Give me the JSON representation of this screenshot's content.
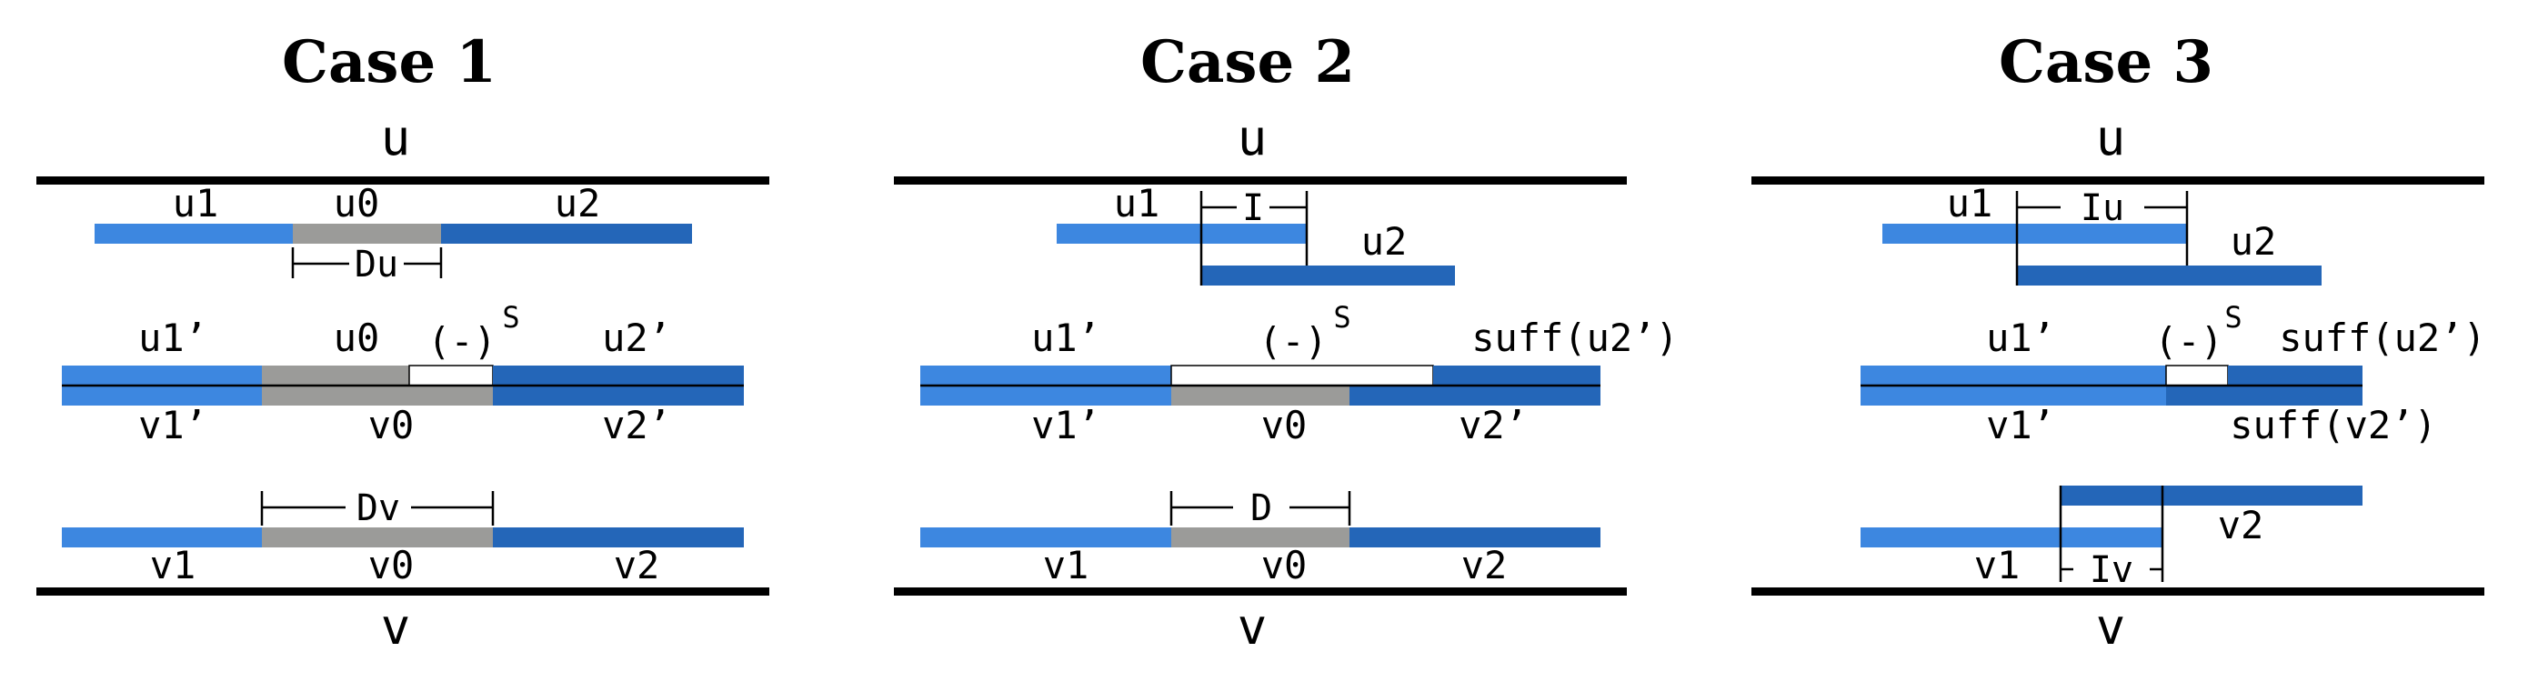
{
  "colors": {
    "light_blue": "#3d87e0",
    "dark_blue": "#2466b8",
    "gray": "#9b9b99",
    "white_segment": "#ffffff",
    "line": "#000000"
  },
  "case1": {
    "title": "Case 1",
    "top_string": "u",
    "bottom_string": "v",
    "u_row": {
      "left": "u1",
      "middle": "u0",
      "right": "u2",
      "dim": "Du"
    },
    "mid_row": {
      "top_left": "u1’",
      "top_middle": "u0",
      "gap": "(-)",
      "gap_sup": "S",
      "top_right": "u2’",
      "bottom_left": "v1’",
      "bottom_middle": "v0",
      "bottom_right": "v2’"
    },
    "v_row": {
      "dim": "Dv",
      "left": "v1",
      "middle": "v0",
      "right": "v2"
    }
  },
  "case2": {
    "title": "Case 2",
    "top_string": "u",
    "bottom_string": "v",
    "u_row": {
      "left": "u1",
      "interval": "I",
      "right": "u2"
    },
    "mid_row": {
      "top_left": "u1’",
      "gap": "(-)",
      "gap_sup": "S",
      "top_right": "suff(u2’)",
      "bottom_left": "v1’",
      "bottom_middle": "v0",
      "bottom_right": "v2’"
    },
    "v_row": {
      "dim": "D",
      "left": "v1",
      "middle": "v0",
      "right": "v2"
    }
  },
  "case3": {
    "title": "Case 3",
    "top_string": "u",
    "bottom_string": "v",
    "u_row": {
      "left": "u1",
      "interval": "Iu",
      "right": "u2"
    },
    "mid_row": {
      "top_left": "u1’",
      "gap": "(-)",
      "gap_sup": "S",
      "top_right": "suff(u2’)",
      "bottom_left": "v1’",
      "bottom_right": "suff(v2’)"
    },
    "v_row": {
      "left": "v1",
      "right": "v2",
      "interval": "Iv"
    }
  }
}
